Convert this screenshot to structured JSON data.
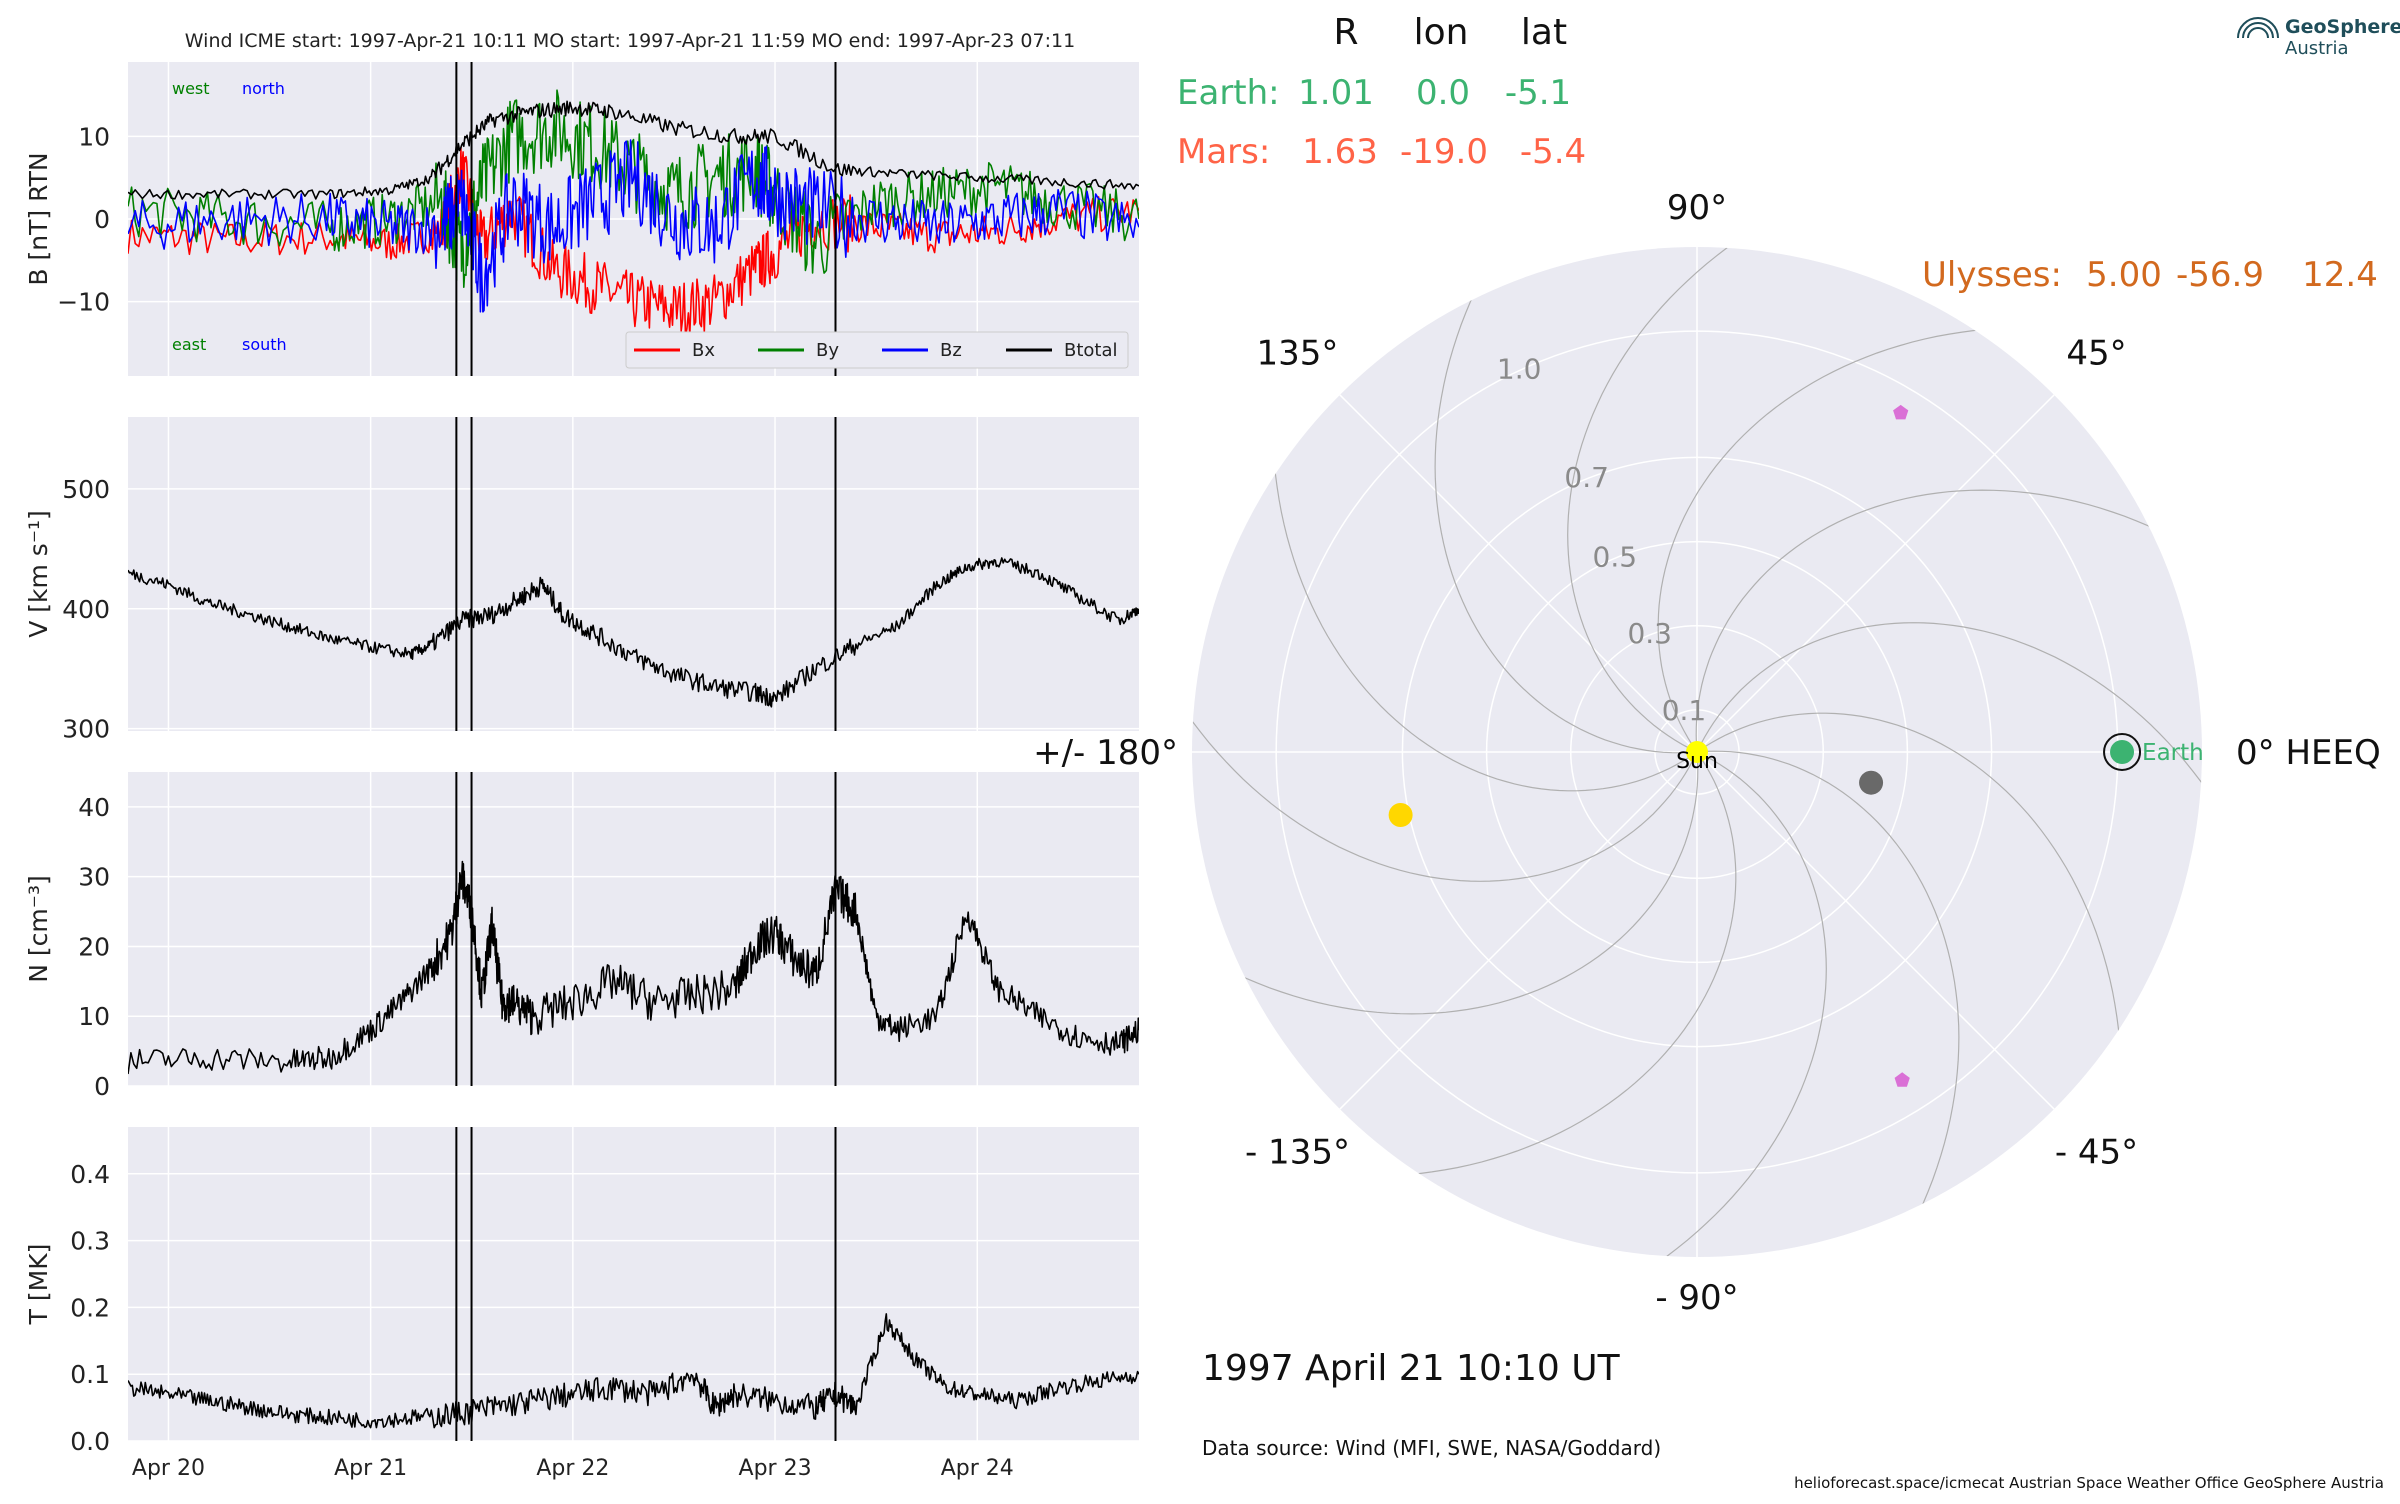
{
  "figure": {
    "title": "Wind    ICME start: 1997-Apr-21 10:11   MO start: 1997-Apr-21 11:59   MO end: 1997-Apr-23 07:11",
    "date_label": "1997 April 21  10:10 UT",
    "data_source": "Data source: Wind (MFI, SWE, NASA/Goddard)",
    "footer": "helioforecast.space/icmecat   Austrian Space Weather Office   GeoSphere Austria",
    "logo": {
      "line1": "GeoSphere",
      "line2": "Austria"
    }
  },
  "colors": {
    "panel_bg": "#eaeaf2",
    "grid": "#ffffff",
    "bx": "#ff0000",
    "by": "#008000",
    "bz": "#0000ff",
    "btotal": "#000000",
    "earth": "#3cb371",
    "mars": "#ff6347",
    "ulysses": "#d2691e",
    "mercury": "#696969",
    "venus": "#ffd700",
    "sun": "#ffff00",
    "stereo": "#da70d6",
    "logo": "#1f4e5a"
  },
  "chart_data": [
    {
      "type": "line",
      "ylabel": "B [nT] RTN",
      "ylim": [
        -19,
        19
      ],
      "yticks": [
        -10,
        0,
        10
      ],
      "xlim": [
        -0.2,
        4.8
      ],
      "x_unit": "days since 1997-04-20",
      "xticks": [
        0,
        1,
        2,
        3,
        4
      ],
      "annotations": {
        "top_left_1": "west",
        "top_left_2": "north",
        "bottom_left_1": "east",
        "bottom_left_2": "south"
      },
      "legend": {
        "placement": "lower right",
        "entries": [
          "Bx",
          "By",
          "Bz",
          "Btotal"
        ]
      },
      "series": [
        {
          "name": "Bx",
          "x": [
            -0.2,
            0.3,
            0.8,
            1.1,
            1.35,
            1.45,
            1.55,
            1.7,
            1.9,
            2.1,
            2.3,
            2.5,
            2.7,
            2.9,
            3.0,
            3.2,
            3.5,
            3.8,
            4.1,
            4.4,
            4.8
          ],
          "y": [
            -2,
            -2.5,
            -2.2,
            -3,
            -1.5,
            6,
            -3,
            1,
            -6,
            -8,
            -10,
            -11,
            -10,
            -6,
            -4,
            0,
            -1,
            -2,
            -1.5,
            0,
            1
          ]
        },
        {
          "name": "By",
          "x": [
            -0.2,
            0.3,
            0.8,
            1.1,
            1.35,
            1.45,
            1.55,
            1.7,
            1.9,
            2.1,
            2.3,
            2.5,
            2.7,
            2.9,
            3.0,
            3.2,
            3.5,
            3.8,
            4.1,
            4.4,
            4.8
          ],
          "y": [
            1,
            0,
            -1,
            0,
            2,
            -4,
            4,
            10,
            11,
            9,
            6,
            3,
            5,
            6,
            3,
            -3,
            2,
            3,
            4,
            2,
            0
          ]
        },
        {
          "name": "Bz",
          "x": [
            -0.2,
            0.3,
            0.8,
            1.1,
            1.35,
            1.45,
            1.55,
            1.7,
            1.9,
            2.1,
            2.3,
            2.5,
            2.7,
            2.9,
            3.0,
            3.2,
            3.5,
            3.8,
            4.1,
            4.4,
            4.8
          ],
          "y": [
            -1,
            0,
            0,
            -1,
            -1,
            2,
            -7,
            2,
            -1,
            2,
            5,
            0,
            -1,
            5,
            3,
            1,
            0,
            -1,
            0,
            1,
            -1
          ]
        },
        {
          "name": "Btotal",
          "x": [
            -0.2,
            0.3,
            0.8,
            1.1,
            1.3,
            1.45,
            1.6,
            1.8,
            2.0,
            2.2,
            2.5,
            2.8,
            3.0,
            3.3,
            3.6,
            4.0,
            4.4,
            4.8
          ],
          "y": [
            3,
            3,
            3,
            3.5,
            5,
            9,
            12,
            13,
            13.5,
            13,
            11,
            10,
            10,
            6,
            5.5,
            5,
            4.5,
            4
          ]
        }
      ]
    },
    {
      "type": "line",
      "ylabel": "V [km s⁻¹]",
      "ylim": [
        298,
        560
      ],
      "yticks": [
        300,
        400,
        500
      ],
      "xlim": [
        -0.2,
        4.8
      ],
      "series": [
        {
          "name": "V",
          "x": [
            -0.2,
            0.0,
            0.2,
            0.4,
            0.6,
            0.8,
            1.0,
            1.2,
            1.3,
            1.45,
            1.6,
            1.75,
            1.85,
            1.95,
            2.1,
            2.3,
            2.5,
            2.7,
            2.9,
            3.0,
            3.2,
            3.4,
            3.6,
            3.8,
            3.95,
            4.1,
            4.3,
            4.5,
            4.7,
            4.8
          ],
          "y": [
            430,
            420,
            405,
            395,
            385,
            375,
            368,
            362,
            370,
            390,
            395,
            410,
            420,
            395,
            380,
            360,
            345,
            335,
            330,
            325,
            350,
            370,
            385,
            420,
            435,
            440,
            430,
            410,
            390,
            400
          ]
        }
      ]
    },
    {
      "type": "line",
      "ylabel": "N [cm⁻³]",
      "ylim": [
        0,
        45
      ],
      "yticks": [
        0,
        10,
        20,
        30,
        40
      ],
      "xlim": [
        -0.2,
        4.8
      ],
      "series": [
        {
          "name": "N",
          "x": [
            -0.2,
            0.2,
            0.6,
            0.8,
            1.0,
            1.15,
            1.3,
            1.4,
            1.45,
            1.5,
            1.55,
            1.6,
            1.65,
            1.7,
            1.8,
            2.0,
            2.2,
            2.4,
            2.6,
            2.8,
            2.9,
            3.0,
            3.1,
            3.2,
            3.3,
            3.4,
            3.5,
            3.6,
            3.8,
            3.95,
            4.1,
            4.3,
            4.5,
            4.7,
            4.8
          ],
          "y": [
            3.5,
            4,
            3.5,
            4,
            8,
            12,
            17,
            22,
            30,
            25,
            13,
            23,
            12,
            12,
            10,
            12,
            15,
            12,
            13,
            14,
            20,
            22,
            18,
            16,
            28,
            25,
            10,
            8,
            10,
            25,
            14,
            10,
            7,
            6,
            8
          ]
        }
      ]
    },
    {
      "type": "line",
      "ylabel": "T [MK]",
      "ylim": [
        0,
        0.47
      ],
      "yticks": [
        0.0,
        0.1,
        0.2,
        0.3,
        0.4
      ],
      "xlim": [
        -0.2,
        4.8
      ],
      "xticklabels": [
        "Apr 20",
        "Apr 21",
        "Apr 22",
        "Apr 23",
        "Apr 24"
      ],
      "series": [
        {
          "name": "T",
          "x": [
            -0.2,
            0.0,
            0.2,
            0.4,
            0.6,
            0.8,
            1.0,
            1.2,
            1.4,
            1.6,
            1.8,
            2.0,
            2.2,
            2.4,
            2.6,
            2.7,
            2.8,
            3.0,
            3.2,
            3.3,
            3.4,
            3.55,
            3.7,
            3.85,
            4.0,
            4.2,
            4.4,
            4.6,
            4.8
          ],
          "y": [
            0.08,
            0.07,
            0.06,
            0.05,
            0.04,
            0.035,
            0.03,
            0.035,
            0.04,
            0.05,
            0.06,
            0.07,
            0.08,
            0.07,
            0.1,
            0.05,
            0.07,
            0.06,
            0.05,
            0.07,
            0.05,
            0.18,
            0.12,
            0.08,
            0.07,
            0.06,
            0.08,
            0.09,
            0.1
          ]
        }
      ]
    },
    {
      "type": "scatter",
      "projection": "polar",
      "theta_unit": "deg HEEQ longitude",
      "r_unit": "AU",
      "rticks": [
        0.1,
        0.3,
        0.5,
        0.7,
        1.0
      ],
      "angle_labels": [
        "0° HEEQ",
        "45°",
        "90°",
        "135°",
        "+/- 180°",
        "- 135°",
        "- 90°",
        "- 45°"
      ],
      "table_header": [
        "R",
        "lon",
        "lat"
      ],
      "table": [
        {
          "name": "Earth:",
          "R": "1.01",
          "lon": "0.0",
          "lat": "-5.1"
        },
        {
          "name": "Mars:",
          "R": "1.63",
          "lon": "-19.0",
          "lat": "-5.4"
        }
      ],
      "ulysses": {
        "name": "Ulysses:",
        "R": "5.00",
        "lon": "-56.9",
        "lat": "12.4"
      },
      "points": [
        {
          "body": "Earth",
          "label": "Earth",
          "r": 1.01,
          "lon": 0.0
        },
        {
          "body": "Mercury",
          "r": 0.42,
          "lon": -10.0
        },
        {
          "body": "Venus",
          "r": 0.72,
          "lon": -168.0
        },
        {
          "body": "Sun",
          "label": "Sun",
          "r": 0.0,
          "lon": 0.0
        },
        {
          "body": "STEREO-A",
          "r": 0.94,
          "lon": 59.0
        },
        {
          "body": "STEREO-B",
          "r": 0.92,
          "lon": -58.0
        }
      ]
    }
  ]
}
